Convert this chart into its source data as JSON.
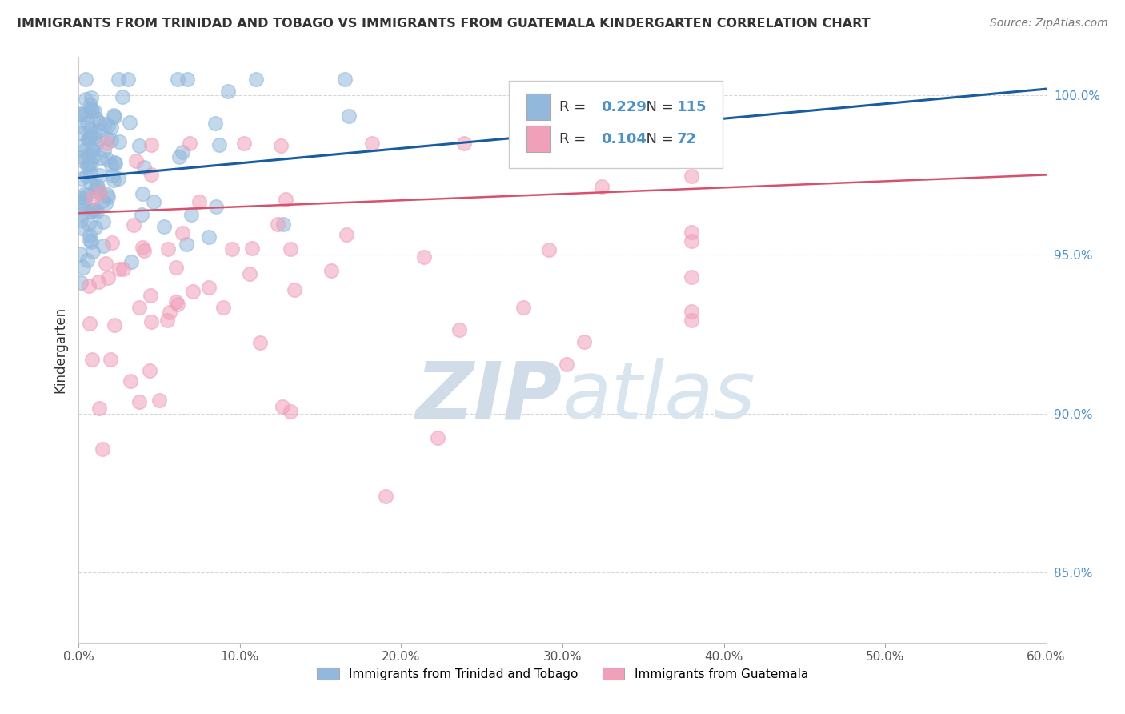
{
  "title": "IMMIGRANTS FROM TRINIDAD AND TOBAGO VS IMMIGRANTS FROM GUATEMALA KINDERGARTEN CORRELATION CHART",
  "source": "Source: ZipAtlas.com",
  "ylabel": "Kindergarten",
  "legend_label1": "Immigrants from Trinidad and Tobago",
  "legend_label2": "Immigrants from Guatemala",
  "R1": 0.229,
  "N1": 115,
  "R2": 0.104,
  "N2": 72,
  "xlim": [
    0.0,
    0.6
  ],
  "ylim": [
    0.828,
    1.012
  ],
  "yticks": [
    0.85,
    0.9,
    0.95,
    1.0
  ],
  "ytick_labels": [
    "85.0%",
    "90.0%",
    "95.0%",
    "100.0%"
  ],
  "xticks": [
    0.0,
    0.1,
    0.2,
    0.3,
    0.4,
    0.5,
    0.6
  ],
  "xtick_labels": [
    "0.0%",
    "10.0%",
    "20.0%",
    "30.0%",
    "40.0%",
    "50.0%",
    "60.0%"
  ],
  "color1": "#92B8DC",
  "color2": "#F0A0B8",
  "line_color1": "#1A5CA0",
  "line_color2": "#D8506C",
  "ytick_color": "#4A90C8",
  "watermark_zip": "ZIP",
  "watermark_atlas": "atlas",
  "watermark_color": "#D0DCE8",
  "background_color": "#FFFFFF",
  "grid_color": "#CCCCCC",
  "legend_box_color": "#F0F0F0"
}
